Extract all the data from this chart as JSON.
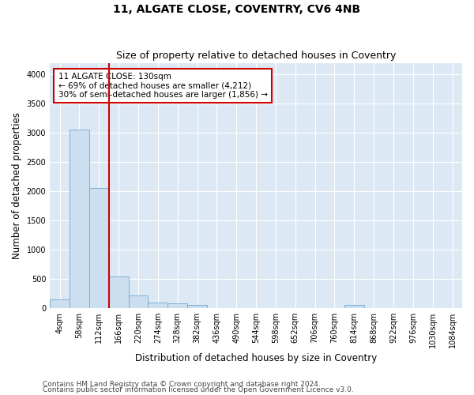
{
  "title": "11, ALGATE CLOSE, COVENTRY, CV6 4NB",
  "subtitle": "Size of property relative to detached houses in Coventry",
  "xlabel": "Distribution of detached houses by size in Coventry",
  "ylabel": "Number of detached properties",
  "categories": [
    "4sqm",
    "58sqm",
    "112sqm",
    "166sqm",
    "220sqm",
    "274sqm",
    "328sqm",
    "382sqm",
    "436sqm",
    "490sqm",
    "544sqm",
    "598sqm",
    "652sqm",
    "706sqm",
    "760sqm",
    "814sqm",
    "868sqm",
    "922sqm",
    "976sqm",
    "1030sqm",
    "1084sqm"
  ],
  "values": [
    150,
    3060,
    2060,
    540,
    220,
    95,
    80,
    55,
    0,
    0,
    0,
    0,
    0,
    0,
    0,
    55,
    0,
    0,
    0,
    0,
    0
  ],
  "bar_color_fill": "#ccdff0",
  "bar_color_edge": "#6ea8d0",
  "vline_color": "#cc0000",
  "vline_x_index": 2,
  "annotation_text_line1": "11 ALGATE CLOSE: 130sqm",
  "annotation_text_line2": "← 69% of detached houses are smaller (4,212)",
  "annotation_text_line3": "30% of semi-detached houses are larger (1,856) →",
  "annotation_box_color": "#cc0000",
  "ylim": [
    0,
    4200
  ],
  "yticks": [
    0,
    500,
    1000,
    1500,
    2000,
    2500,
    3000,
    3500,
    4000
  ],
  "bg_color": "#dce9f5",
  "grid_color": "#ffffff",
  "fig_bg_color": "#ffffff",
  "footer_line1": "Contains HM Land Registry data © Crown copyright and database right 2024.",
  "footer_line2": "Contains public sector information licensed under the Open Government Licence v3.0.",
  "title_fontsize": 10,
  "subtitle_fontsize": 9,
  "axis_label_fontsize": 8.5,
  "tick_fontsize": 7,
  "annotation_fontsize": 7.5,
  "footer_fontsize": 6.5
}
